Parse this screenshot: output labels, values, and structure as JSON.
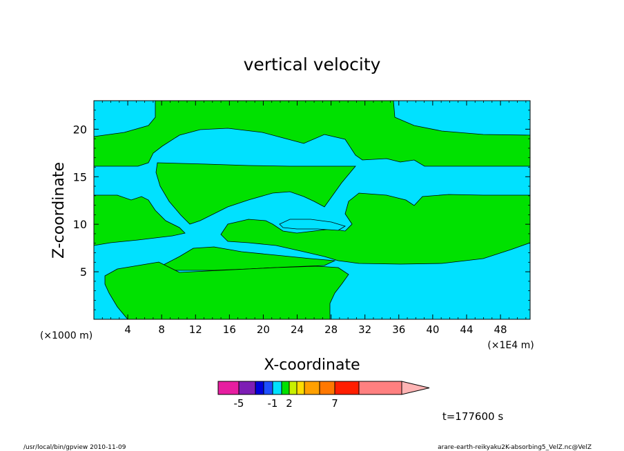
{
  "chart_data": {
    "type": "heatmap",
    "title": "vertical velocity",
    "xlabel": "X-coordinate",
    "ylabel": "Z-coordinate",
    "x_scale_note_left": "(×1000 m)",
    "x_scale_note_right": "(×1E4 m)",
    "x_range": [
      0,
      51.5
    ],
    "y_range": [
      0,
      23
    ],
    "x_ticks": [
      4,
      8,
      12,
      16,
      20,
      24,
      28,
      32,
      36,
      40,
      44,
      48
    ],
    "y_ticks": [
      5,
      10,
      15,
      20
    ],
    "time_label": "t=177600 s",
    "colorbar": {
      "colors": [
        "#e61ea0",
        "#7d1eb4",
        "#0000dc",
        "#1e50ff",
        "#00e1ff",
        "#00e100",
        "#c8f000",
        "#ffdc00",
        "#ffa000",
        "#ff7800",
        "#ff1e00",
        "#ff8080",
        "#ffb4b4"
      ],
      "tick_labels": [
        "-5",
        "-1",
        "2",
        "7"
      ]
    },
    "series": [
      {
        "name": "cyan",
        "color": "#00e1ff"
      },
      {
        "name": "green",
        "color": "#00e100"
      }
    ]
  },
  "footer": {
    "left": "/usr/local/bin/gpview   2010-11-09",
    "right": "arare-earth-reikyaku2K-absorbing5_VelZ.nc@VelZ"
  }
}
